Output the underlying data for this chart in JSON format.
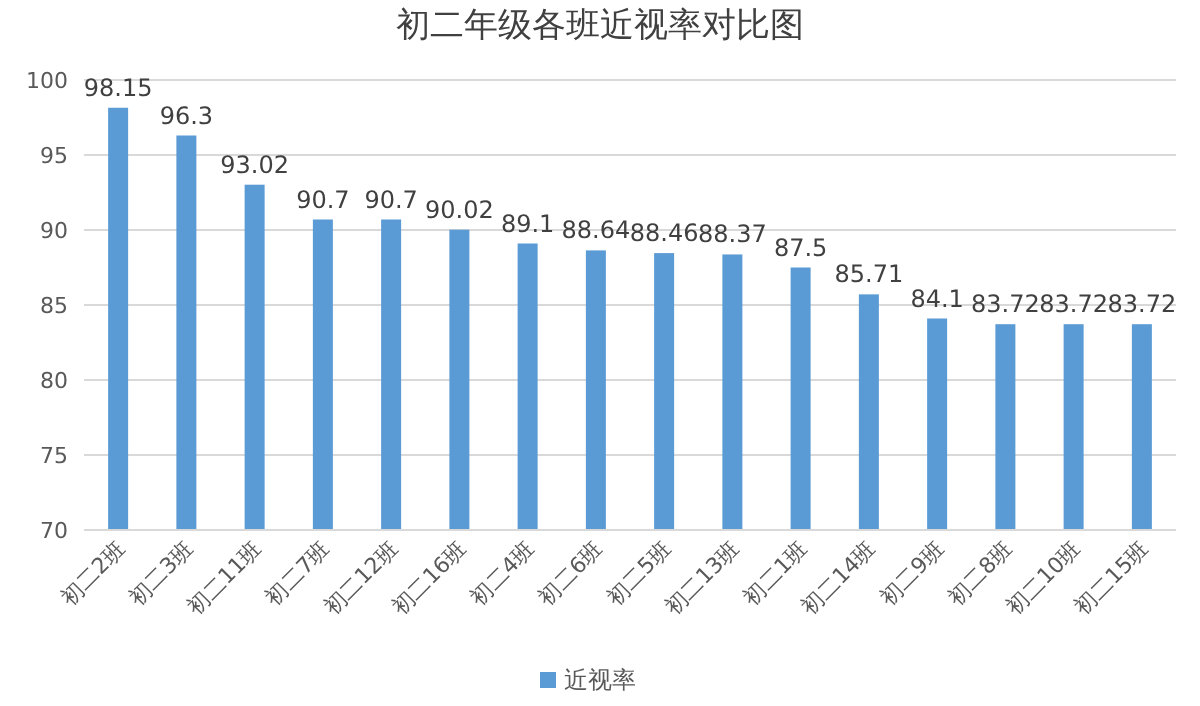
{
  "chart_data": {
    "type": "bar",
    "title": "初二年级各班近视率对比图",
    "categories": [
      "初二2班",
      "初二3班",
      "初二11班",
      "初二7班",
      "初二12班",
      "初二16班",
      "初二4班",
      "初二6班",
      "初二5班",
      "初二13班",
      "初二1班",
      "初二14班",
      "初二9班",
      "初二8班",
      "初二10班",
      "初二15班"
    ],
    "series": [
      {
        "name": "近视率",
        "color": "#5b9bd5",
        "values": [
          98.15,
          96.3,
          93.02,
          90.7,
          90.7,
          90.02,
          89.1,
          88.64,
          88.46,
          88.37,
          87.5,
          85.71,
          84.1,
          83.72,
          83.72,
          83.72
        ]
      }
    ],
    "ylim": [
      70,
      100
    ],
    "yticks": [
      70,
      75,
      80,
      85,
      90,
      95,
      100
    ],
    "grid": "y",
    "legend": "bottom",
    "data_labels": true
  }
}
